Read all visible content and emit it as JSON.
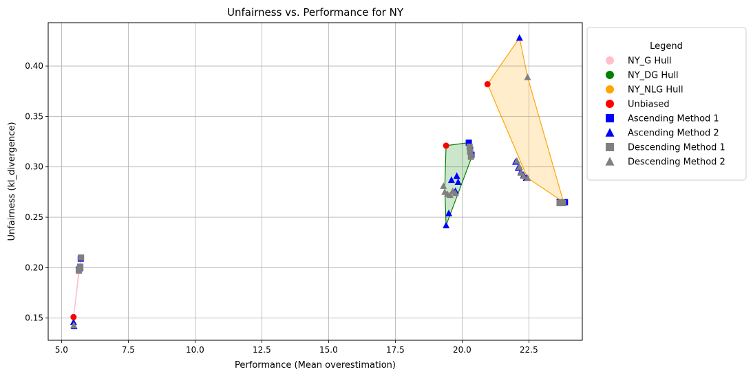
{
  "chart_data": {
    "type": "scatter",
    "title": "Unfairness vs. Performance for NY",
    "xlabel": "Performance (Mean overestimation)",
    "ylabel": "Unfairness (kl_divergence)",
    "xlim": [
      4.5,
      24.5
    ],
    "ylim": [
      0.128,
      0.443
    ],
    "x_ticks": [
      "5.0",
      "7.5",
      "10.0",
      "12.5",
      "15.0",
      "17.5",
      "20.0",
      "22.5"
    ],
    "x_tick_values": [
      5.0,
      7.5,
      10.0,
      12.5,
      15.0,
      17.5,
      20.0,
      22.5
    ],
    "y_ticks": [
      "0.15",
      "0.20",
      "0.25",
      "0.30",
      "0.35",
      "0.40"
    ],
    "y_tick_values": [
      0.15,
      0.2,
      0.25,
      0.3,
      0.35,
      0.4
    ],
    "grid": true,
    "legend_title": "Legend",
    "legend_position": "outside right, top",
    "hulls": [
      {
        "name": "NY_G Hull",
        "line": "#ffc0cb",
        "fill": "#ffc0cb",
        "fill_opacity": 0.2,
        "points": [
          [
            5.45,
            0.151
          ],
          [
            5.72,
            0.208
          ],
          [
            5.65,
            0.198
          ]
        ]
      },
      {
        "name": "NY_DG Hull",
        "line": "#008000",
        "fill": "#008000",
        "fill_opacity": 0.2,
        "points": [
          [
            19.4,
            0.321
          ],
          [
            20.25,
            0.324
          ],
          [
            20.35,
            0.309
          ],
          [
            19.4,
            0.242
          ],
          [
            19.35,
            0.28
          ]
        ]
      },
      {
        "name": "NY_NLG Hull",
        "line": "#ffa500",
        "fill": "#ffa500",
        "fill_opacity": 0.2,
        "points": [
          [
            20.95,
            0.382
          ],
          [
            22.15,
            0.428
          ],
          [
            22.45,
            0.389
          ],
          [
            23.8,
            0.265
          ],
          [
            22.45,
            0.289
          ]
        ]
      }
    ],
    "series": [
      {
        "name": "Unbiased",
        "marker": "circle",
        "color": "#ff0000",
        "points": [
          [
            5.45,
            0.151
          ],
          [
            19.4,
            0.321
          ],
          [
            20.95,
            0.382
          ]
        ]
      },
      {
        "name": "Ascending Method 1",
        "marker": "square",
        "color": "#0000ff",
        "points": [
          [
            5.65,
            0.198
          ],
          [
            5.7,
            0.2
          ],
          [
            5.72,
            0.209
          ],
          [
            20.25,
            0.324
          ],
          [
            20.3,
            0.317
          ],
          [
            20.35,
            0.312
          ],
          [
            23.65,
            0.265
          ],
          [
            23.7,
            0.265
          ],
          [
            23.75,
            0.265
          ],
          [
            23.85,
            0.265
          ]
        ]
      },
      {
        "name": "Ascending Method 2",
        "marker": "triangle",
        "color": "#0000ff",
        "points": [
          [
            5.45,
            0.146
          ],
          [
            5.47,
            0.142
          ],
          [
            19.4,
            0.242
          ],
          [
            19.5,
            0.254
          ],
          [
            19.6,
            0.287
          ],
          [
            19.75,
            0.276
          ],
          [
            19.8,
            0.291
          ],
          [
            19.85,
            0.285
          ],
          [
            22.0,
            0.305
          ],
          [
            22.1,
            0.299
          ],
          [
            22.15,
            0.428
          ],
          [
            22.2,
            0.295
          ],
          [
            22.3,
            0.292
          ],
          [
            22.4,
            0.289
          ]
        ]
      },
      {
        "name": "Descending Method 1",
        "marker": "square",
        "color": "#808080",
        "points": [
          [
            5.65,
            0.197
          ],
          [
            5.68,
            0.199
          ],
          [
            5.7,
            0.201
          ],
          [
            5.73,
            0.21
          ],
          [
            20.28,
            0.32
          ],
          [
            20.3,
            0.315
          ],
          [
            20.33,
            0.31
          ],
          [
            23.65,
            0.264
          ],
          [
            23.72,
            0.265
          ],
          [
            23.78,
            0.264
          ]
        ]
      },
      {
        "name": "Descending Method 2",
        "marker": "triangle",
        "color": "#808080",
        "points": [
          [
            5.46,
            0.143
          ],
          [
            19.3,
            0.281
          ],
          [
            19.35,
            0.275
          ],
          [
            19.45,
            0.273
          ],
          [
            19.55,
            0.272
          ],
          [
            19.65,
            0.276
          ],
          [
            19.75,
            0.274
          ],
          [
            22.05,
            0.306
          ],
          [
            22.15,
            0.3
          ],
          [
            22.2,
            0.294
          ],
          [
            22.3,
            0.291
          ],
          [
            22.45,
            0.289
          ],
          [
            22.45,
            0.389
          ]
        ]
      }
    ],
    "legend": [
      {
        "label": "NY_G Hull",
        "marker": "circle",
        "color": "#ffc0cb"
      },
      {
        "label": "NY_DG Hull",
        "marker": "circle",
        "color": "#008000"
      },
      {
        "label": "NY_NLG Hull",
        "marker": "circle",
        "color": "#ffa500"
      },
      {
        "label": "Unbiased",
        "marker": "circle",
        "color": "#ff0000"
      },
      {
        "label": "Ascending Method 1",
        "marker": "square",
        "color": "#0000ff"
      },
      {
        "label": "Ascending Method 2",
        "marker": "triangle",
        "color": "#0000ff"
      },
      {
        "label": "Descending Method 1",
        "marker": "square",
        "color": "#808080"
      },
      {
        "label": "Descending Method 2",
        "marker": "triangle",
        "color": "#808080"
      }
    ]
  }
}
